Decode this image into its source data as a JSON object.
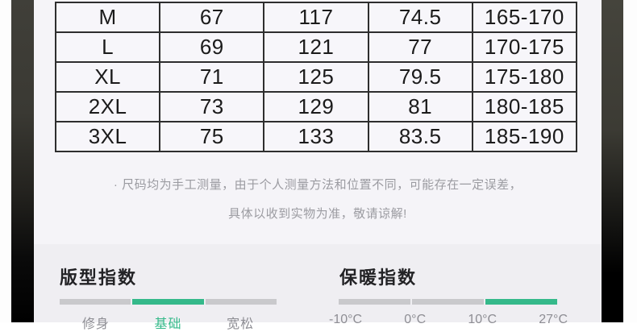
{
  "colors": {
    "accent_green": "#35b98a",
    "bar_gray": "#c9c9cc",
    "table_border": "#2e2e2e",
    "note_gray": "#9b9ba1",
    "panel_bg": "#efeef2"
  },
  "size_table": {
    "rows": [
      [
        "M",
        "67",
        "117",
        "74.5",
        "165-170"
      ],
      [
        "L",
        "69",
        "121",
        "77",
        "170-175"
      ],
      [
        "XL",
        "71",
        "125",
        "79.5",
        "175-180"
      ],
      [
        "2XL",
        "73",
        "129",
        "81",
        "180-185"
      ],
      [
        "3XL",
        "75",
        "133",
        "83.5",
        "185-190"
      ]
    ]
  },
  "note": {
    "line1": "· 尺码均为手工测量，由于个人测量方法和位置不同，可能存在一定误差，",
    "line2": "具体以收到实物为准，敬请谅解!"
  },
  "fit_index": {
    "title": "版型指数",
    "labels": [
      "修身",
      "基础",
      "宽松"
    ],
    "active_label": "基础",
    "active_segment_index": 1,
    "segment_count": 3
  },
  "warmth_index": {
    "title": "保暖指数",
    "labels": [
      "-10°C",
      "0°C",
      "10°C",
      "27°C"
    ],
    "active_segment_index": 2,
    "segment_count": 3
  }
}
